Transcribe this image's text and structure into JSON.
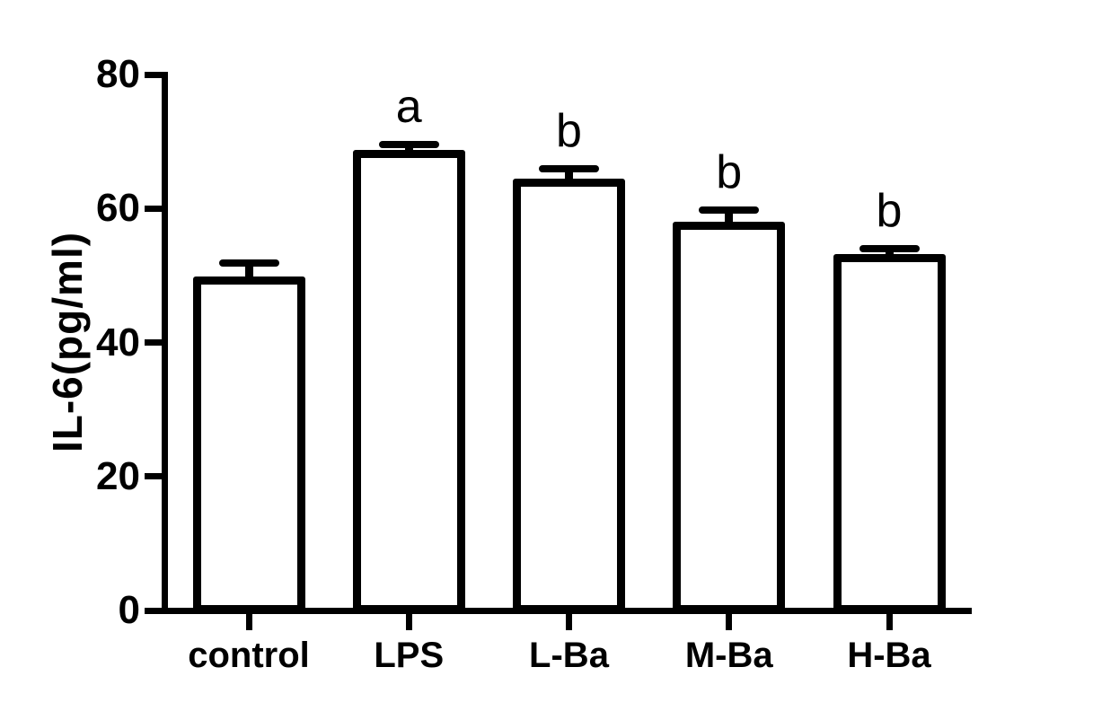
{
  "colors": {
    "background": "#ffffff",
    "axis": "#000000",
    "bar_fill": "#ffffff",
    "bar_border": "#000000",
    "text": "#000000"
  },
  "chart_data": {
    "type": "bar",
    "title": "",
    "xlabel": "",
    "ylabel": "IL-6(pg/ml)",
    "categories": [
      "control",
      "LPS",
      "L-Ba",
      "M-Ba",
      "H-Ba"
    ],
    "values": [
      49.8,
      68.8,
      64.5,
      58.0,
      53.2
    ],
    "errors": [
      2.0,
      0.7,
      1.4,
      1.7,
      0.8
    ],
    "error_bars": "upper-only",
    "significance_letters": [
      "",
      "a",
      "b",
      "b",
      "b"
    ],
    "ylim": [
      0,
      80
    ],
    "yticks": [
      0,
      20,
      40,
      60,
      80
    ],
    "grid": false,
    "legend": "none",
    "bar_style": "open (white fill, thick black outline)"
  }
}
